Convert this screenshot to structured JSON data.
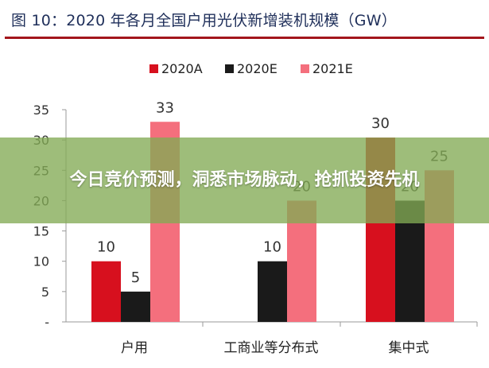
{
  "header": {
    "title": "图 10：2020 年各月全国户用光伏新增装机规模（GW）"
  },
  "banner": {
    "text": "今日竞价预测，洞悉市场脉动，抢抓投资先机"
  },
  "colors": {
    "2020A": "#d7101e",
    "2020E": "#1a1a1a",
    "2021E": "#f46f7d",
    "title_line": "#a3161c",
    "banner": "#83ab54"
  },
  "chart_data": {
    "type": "bar",
    "title": "图 10：2020 年各月全国户用光伏新增装机规模（GW）",
    "xlabel": "",
    "ylabel": "",
    "categories": [
      "户用",
      "工商业等分布式",
      "集中式"
    ],
    "series": [
      {
        "name": "2020A",
        "values": [
          10,
          null,
          30
        ]
      },
      {
        "name": "2020E",
        "values": [
          5,
          10,
          20
        ]
      },
      {
        "name": "2021E",
        "values": [
          33,
          20,
          25
        ]
      }
    ],
    "ylim": [
      0,
      35
    ],
    "yticks": [
      "-",
      "5",
      "10",
      "15",
      "20",
      "25",
      "30",
      "35"
    ],
    "legend": "top-center",
    "grid": false
  }
}
